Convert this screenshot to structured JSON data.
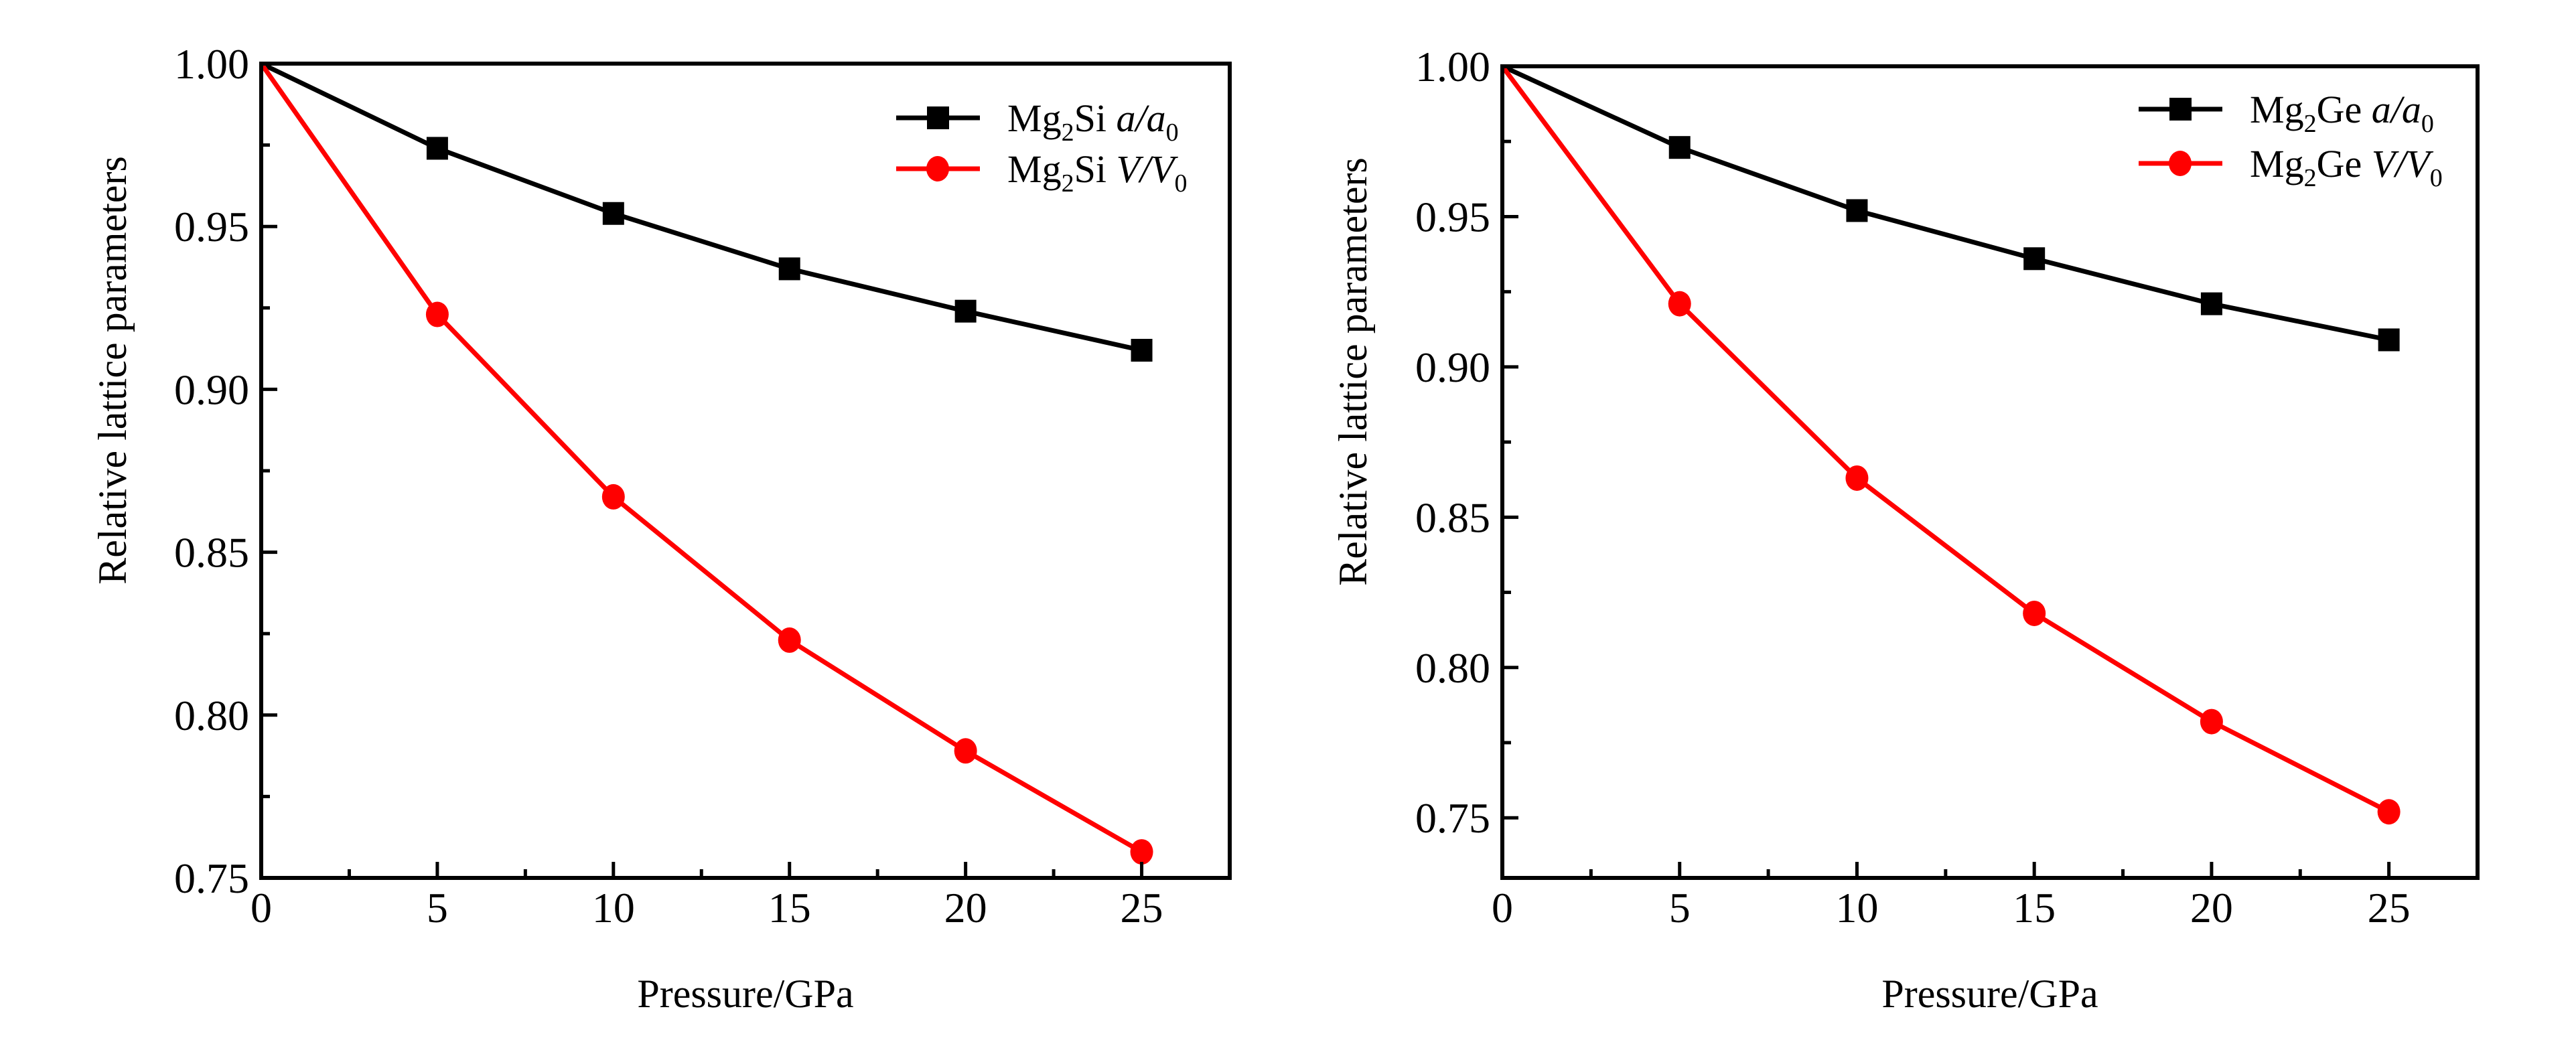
{
  "chart_data": [
    {
      "type": "line",
      "title": "",
      "xlabel": "Pressure/GPa",
      "ylabel": "Relative lattice parameters",
      "xlim": [
        0,
        27.5
      ],
      "ylim": [
        0.75,
        1.0
      ],
      "x_ticks": [
        0,
        5,
        10,
        15,
        20,
        25
      ],
      "x_minor_ticks": [
        2.5,
        7.5,
        12.5,
        17.5,
        22.5
      ],
      "y_ticks": [
        0.75,
        0.8,
        0.85,
        0.9,
        0.95,
        1.0
      ],
      "y_tick_labels": [
        "0.75",
        "0.80",
        "0.85",
        "0.90",
        "0.95",
        "1.00"
      ],
      "y_minor_ticks": [
        0.775,
        0.825,
        0.875,
        0.925,
        0.975
      ],
      "grid": false,
      "legend_position": "top-right",
      "x": [
        0,
        5,
        10,
        15,
        20,
        25
      ],
      "series": [
        {
          "name": "Mg2Si a/a0",
          "legend": {
            "compound": "Mg",
            "sub": "2",
            "element": "Si",
            "ratio_num": "a",
            "slash": "/",
            "ratio_den": "a",
            "ratio_sub": "0"
          },
          "color": "#000000",
          "marker": "square",
          "values": [
            1.0,
            0.974,
            0.954,
            0.937,
            0.924,
            0.912
          ]
        },
        {
          "name": "Mg2Si V/V0",
          "legend": {
            "compound": "Mg",
            "sub": "2",
            "element": "Si",
            "ratio_num": "V",
            "slash": "/",
            "ratio_den": "V",
            "ratio_sub": "0"
          },
          "color": "#ff0000",
          "marker": "circle",
          "values": [
            1.0,
            0.923,
            0.867,
            0.823,
            0.789,
            0.758
          ]
        }
      ]
    },
    {
      "type": "line",
      "title": "",
      "xlabel": "Pressure/GPa",
      "ylabel": "Relative lattice parameters",
      "xlim": [
        0,
        27.5
      ],
      "ylim": [
        0.73,
        1.0
      ],
      "x_ticks": [
        0,
        5,
        10,
        15,
        20,
        25
      ],
      "x_minor_ticks": [
        2.5,
        7.5,
        12.5,
        17.5,
        22.5
      ],
      "y_ticks": [
        0.75,
        0.8,
        0.85,
        0.9,
        0.95,
        1.0
      ],
      "y_tick_labels": [
        "0.75",
        "0.80",
        "0.85",
        "0.90",
        "0.95",
        "1.00"
      ],
      "y_minor_ticks": [
        0.775,
        0.825,
        0.875,
        0.925,
        0.975
      ],
      "grid": false,
      "legend_position": "top-right",
      "x": [
        0,
        5,
        10,
        15,
        20,
        25
      ],
      "series": [
        {
          "name": "Mg2Ge a/a0",
          "legend": {
            "compound": "Mg",
            "sub": "2",
            "element": "Ge",
            "ratio_num": "a",
            "slash": "/",
            "ratio_den": "a",
            "ratio_sub": "0"
          },
          "color": "#000000",
          "marker": "square",
          "values": [
            1.0,
            0.973,
            0.952,
            0.936,
            0.921,
            0.909
          ]
        },
        {
          "name": "Mg2Ge V/V0",
          "legend": {
            "compound": "Mg",
            "sub": "2",
            "element": "Ge",
            "ratio_num": "V",
            "slash": "/",
            "ratio_den": "V",
            "ratio_sub": "0"
          },
          "color": "#ff0000",
          "marker": "circle",
          "values": [
            1.0,
            0.921,
            0.863,
            0.818,
            0.782,
            0.752
          ]
        }
      ]
    }
  ]
}
